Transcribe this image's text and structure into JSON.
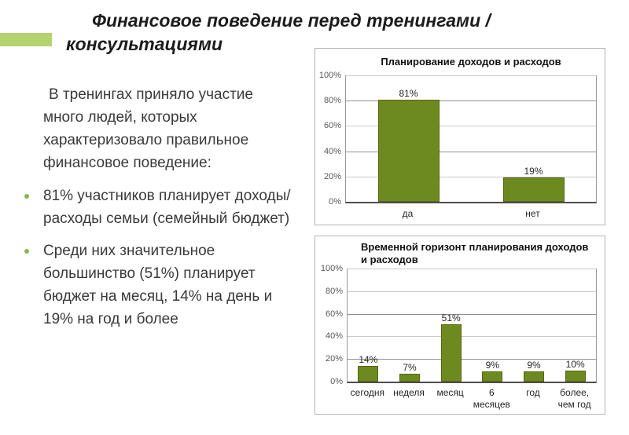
{
  "slide": {
    "title": {
      "line1": "Финансовое поведение перед тренингами /",
      "line2": "консультациями"
    },
    "intro": "В тренингах приняло участие много людей, которых характеризовало правильное финансовое поведение:",
    "bullets": [
      "81% участников планирует доходы/расходы семьи (семейный бюджет)",
      "Среди них значительное большинство (51%) планирует бюджет на месяц, 14% на день и 19% на год и более"
    ],
    "colors": {
      "accent_bar": "#b3d36e",
      "bullet": "#84ba4d",
      "bar_fill": "#6d8a20",
      "bar_border": "#55670f"
    }
  },
  "chart_data": [
    {
      "type": "bar",
      "title": "Планирование доходов и расходов",
      "categories": [
        "да",
        "нет"
      ],
      "values": [
        81,
        19
      ],
      "value_labels": [
        "81%",
        "19%"
      ],
      "ylim": [
        0,
        100
      ],
      "y_ticks": [
        "0%",
        "20%",
        "40%",
        "60%",
        "80%",
        "100%"
      ],
      "grid": true,
      "strong_gridlines": [
        40,
        80
      ],
      "legend": "none",
      "bar_color": "#6d8a20"
    },
    {
      "type": "bar",
      "title": "Временной горизонт планирования доходов и расходов",
      "categories": [
        "сегодня",
        "неделя",
        "месяц",
        "6 месяцев",
        "год",
        "более, чем год"
      ],
      "values": [
        14,
        7,
        51,
        9,
        9,
        10
      ],
      "value_labels": [
        "14%",
        "7%",
        "51%",
        "9%",
        "9%",
        "10%"
      ],
      "ylim": [
        0,
        100
      ],
      "y_ticks": [
        "0%",
        "20%",
        "40%",
        "60%",
        "80%",
        "100%"
      ],
      "grid": true,
      "strong_gridlines": [
        20,
        60
      ],
      "legend": "none",
      "bar_color": "#6d8a20"
    }
  ]
}
